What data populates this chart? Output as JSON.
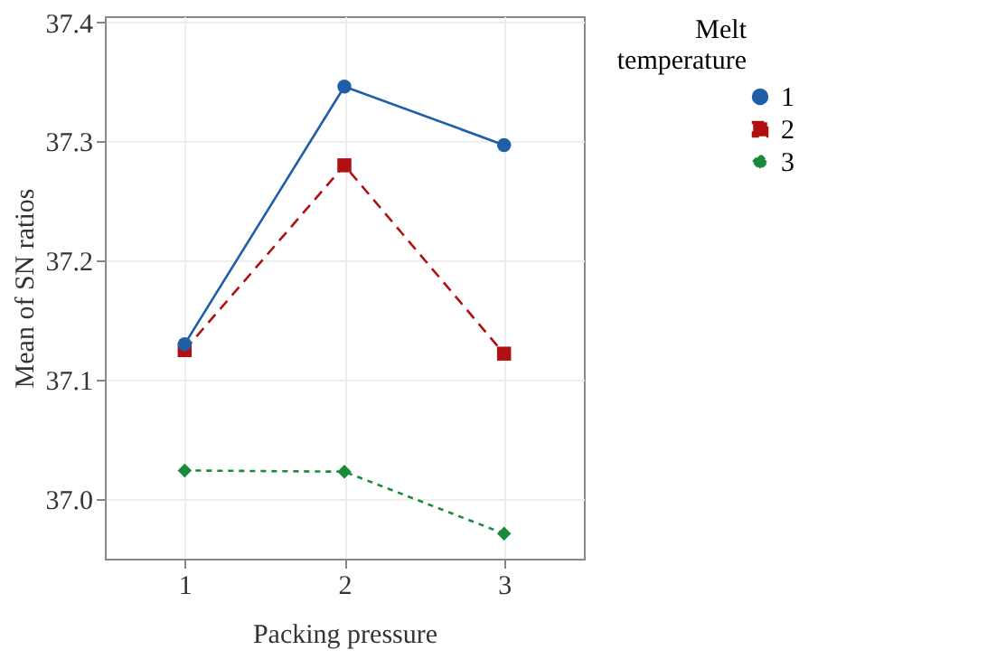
{
  "chart_data": {
    "type": "line",
    "xlabel": "Packing pressure",
    "ylabel": "Mean of SN ratios",
    "legend_title": "Melt temperature",
    "categories": [
      "1",
      "2",
      "3"
    ],
    "series": [
      {
        "name": "1",
        "color": "#1f5fa8",
        "values": [
          37.13,
          37.346,
          37.297
        ],
        "marker": "circle",
        "line_style": "solid"
      },
      {
        "name": "2",
        "color": "#b01010",
        "values": [
          37.125,
          37.28,
          37.122
        ],
        "marker": "square",
        "line_style": "dashed"
      },
      {
        "name": "3",
        "color": "#1a8a3a",
        "values": [
          37.024,
          37.023,
          36.971
        ],
        "marker": "diamond",
        "line_style": "dotted"
      }
    ],
    "ylim": [
      36.95,
      37.405
    ],
    "yticks": [
      {
        "value": 37,
        "label": "37.0"
      },
      37.1,
      37.2,
      37.3,
      37.4
    ],
    "grid": true,
    "legend": "right"
  }
}
